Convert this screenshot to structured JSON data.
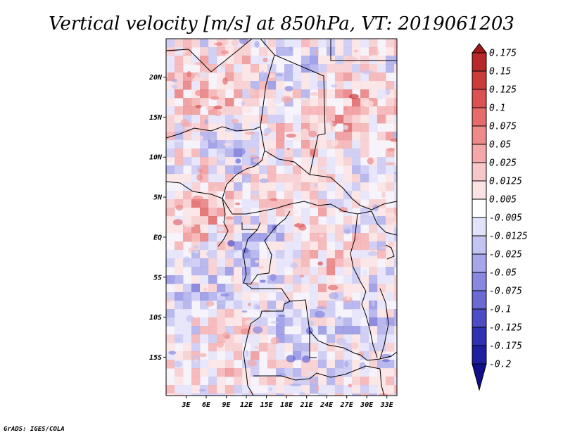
{
  "chart_data": {
    "type": "heatmap",
    "title": "Vertical velocity [m/s] at 850hPa, VT: 2019061203",
    "xlabel": "",
    "ylabel": "",
    "x_ticks": [
      "3E",
      "6E",
      "9E",
      "12E",
      "15E",
      "18E",
      "21E",
      "24E",
      "27E",
      "30E",
      "33E"
    ],
    "y_ticks": [
      "20N",
      "15N",
      "10N",
      "5N",
      "EQ",
      "5S",
      "10S",
      "15S"
    ],
    "x_tick_values": [
      3,
      6,
      9,
      12,
      15,
      18,
      21,
      24,
      27,
      30,
      33
    ],
    "y_tick_values": [
      20,
      15,
      10,
      5,
      0,
      -5,
      -10,
      -15
    ],
    "xlim": [
      0,
      34.5
    ],
    "ylim": [
      -19.8,
      24.8
    ],
    "colorbar": {
      "levels": [
        "0.175",
        "0.15",
        "0.125",
        "0.1",
        "0.075",
        "0.05",
        "0.025",
        "0.0125",
        "0.005",
        "-0.005",
        "-0.0125",
        "-0.025",
        "-0.05",
        "-0.075",
        "-0.1",
        "-0.125",
        "-0.175",
        "-0.2"
      ],
      "colors": [
        "#a01818",
        "#b82828",
        "#cc3a3a",
        "#dc5252",
        "#e66c6c",
        "#ee8a8a",
        "#f4a8a8",
        "#f8c8c8",
        "#fce2e2",
        "#ffffff",
        "#e2e2fa",
        "#c4c4f2",
        "#a6a6ea",
        "#8888e0",
        "#6a6ad4",
        "#4c4cc6",
        "#3030b4",
        "#1e1ea0",
        "#10108a"
      ]
    },
    "grid": false,
    "legend": "colorbar-right"
  },
  "footer": {
    "credit": "GrADS: IGES/COLA"
  }
}
